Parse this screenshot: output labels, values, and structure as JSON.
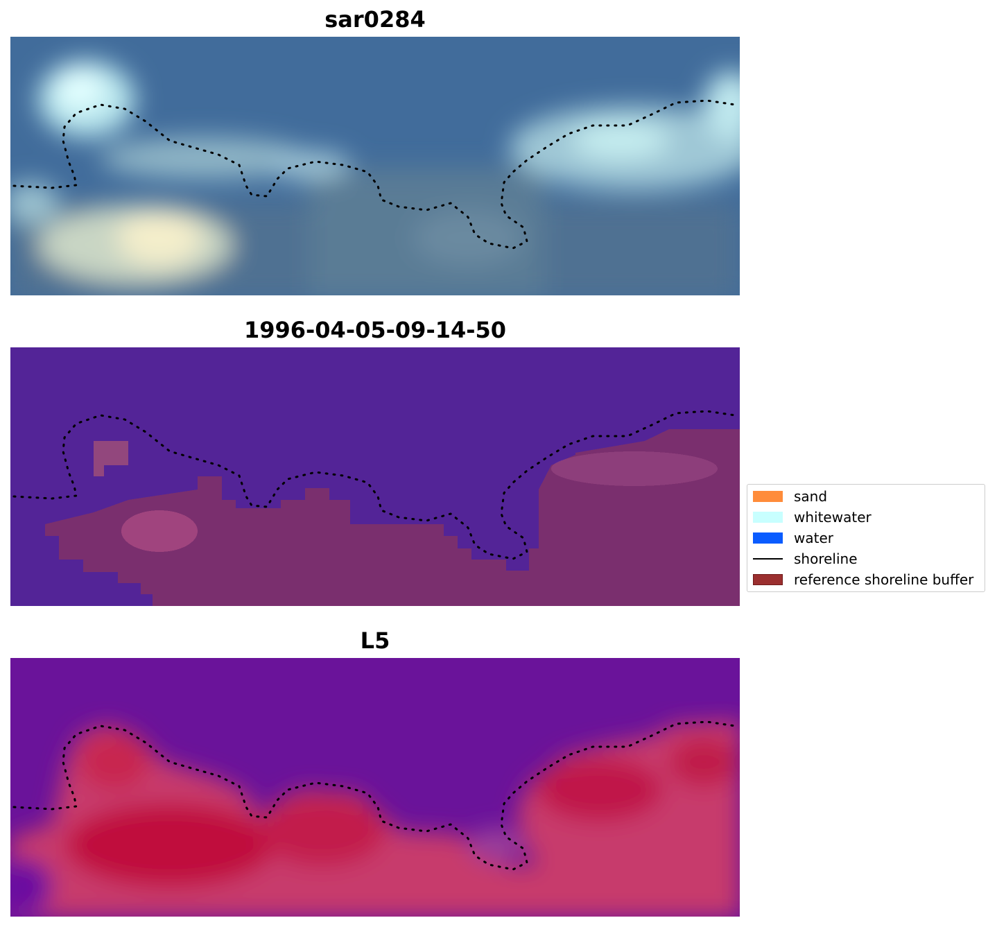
{
  "panels": [
    {
      "title": "sar0284",
      "image": "rgb satellite composite"
    },
    {
      "title": "1996-04-05-09-14-50",
      "image": "classified image"
    },
    {
      "title": "L5",
      "image": "water index image"
    }
  ],
  "legend": {
    "items": [
      {
        "label": "sand",
        "color": "#ff8c3a",
        "kind": "patch"
      },
      {
        "label": "whitewater",
        "color": "#c8ffff",
        "kind": "patch"
      },
      {
        "label": "water",
        "color": "#0a5cff",
        "kind": "patch"
      },
      {
        "label": "shoreline",
        "color": "#000000",
        "kind": "line"
      },
      {
        "label": "reference shoreline buffer",
        "color": "#9b2f2f",
        "kind": "patch"
      }
    ]
  },
  "colors": {
    "rgb_water": "#3e6a9a",
    "rgb_whitewater": "#c8f2f2",
    "rgb_sand": "#f2ecc8",
    "class_water": "#532497",
    "class_land": "#7a2f6e",
    "index_water": "#641096",
    "index_land": "#c81e4e"
  }
}
